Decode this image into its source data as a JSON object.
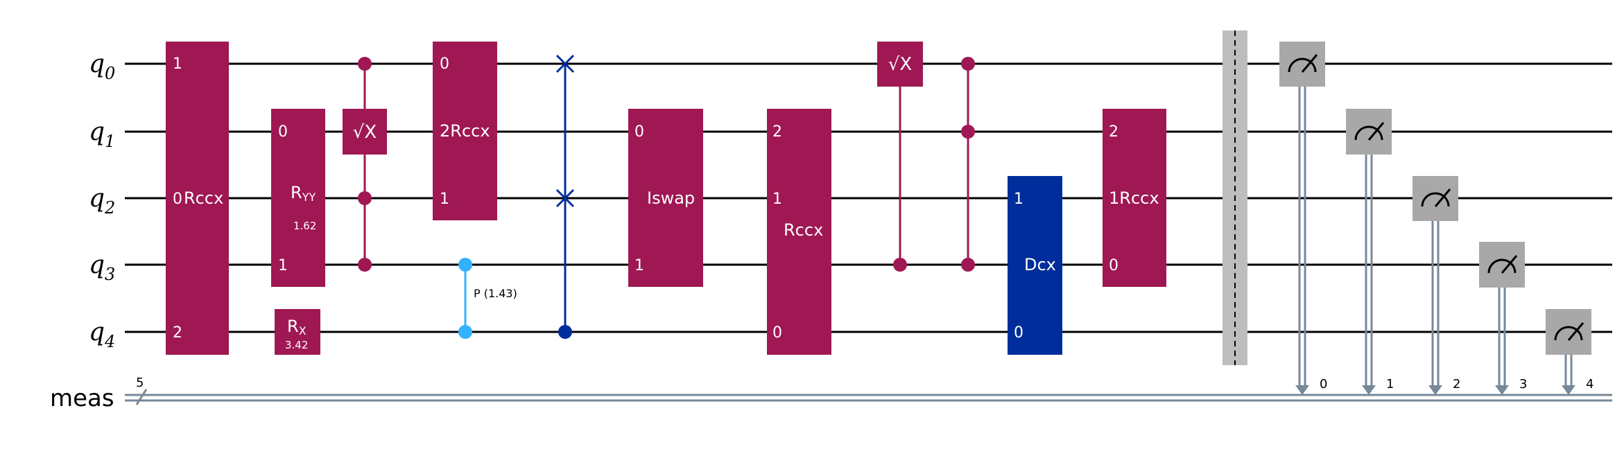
{
  "qubits": [
    "q",
    "q",
    "q",
    "q",
    "q"
  ],
  "qubit_subscripts": [
    "0",
    "1",
    "2",
    "3",
    "4"
  ],
  "classical_register": {
    "name": "meas",
    "width_label": "5",
    "bit_labels": [
      "0",
      "1",
      "2",
      "3",
      "4"
    ]
  },
  "colors": {
    "multi_gate": "#9F1853",
    "dcx_gate": "#002D9C",
    "swap": "#002D9C",
    "phase": "#33B1FF",
    "measure": "#A8A8A8",
    "classical_wire": "#778899",
    "barrier": "#BDBDBD"
  },
  "gates": {
    "rccx_a": {
      "label": "Rccx",
      "pins": [
        "1",
        "0",
        "2"
      ]
    },
    "ryy": {
      "label": "R",
      "sub": "YY",
      "param": "1.62",
      "pins": [
        "0",
        "1"
      ]
    },
    "rx": {
      "label": "R",
      "sub": "X",
      "param": "3.42"
    },
    "csx_a": {
      "label": "√X"
    },
    "rccx_b": {
      "label": "Rccx",
      "pins": [
        "0",
        "2",
        "1"
      ]
    },
    "cp": {
      "label": "P (1.43)"
    },
    "iswap": {
      "label": "Iswap",
      "pins": [
        "0",
        "1"
      ]
    },
    "rccx_c": {
      "label": "Rccx",
      "pins": [
        "2",
        "1",
        "0"
      ]
    },
    "csx_b": {
      "label": "√X"
    },
    "dcx": {
      "label": "Dcx",
      "pins": [
        "1",
        "0"
      ]
    },
    "rccx_d": {
      "label": "Rccx",
      "pins": [
        "2",
        "1",
        "0"
      ]
    }
  }
}
